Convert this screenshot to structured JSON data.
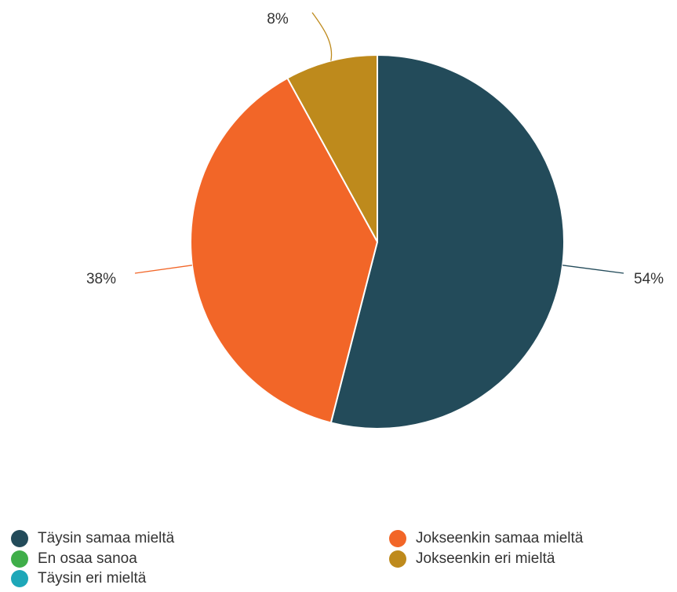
{
  "chart_data": {
    "type": "pie",
    "categories": [
      "Täysin samaa mieltä",
      "Jokseenkin samaa mieltä",
      "En osaa sanoa",
      "Jokseenkin eri mieltä",
      "Täysin eri mieltä"
    ],
    "values": [
      54,
      38,
      0,
      8,
      0
    ],
    "value_labels": [
      "54%",
      "38%",
      "",
      "8%",
      ""
    ],
    "colors": [
      "#234B5A",
      "#F26628",
      "#3FAE49",
      "#BE8A1C",
      "#1EA7B8"
    ],
    "legend_position": "bottom",
    "title": ""
  },
  "legend": [
    {
      "label": "Täysin samaa mieltä",
      "color": "#234B5A"
    },
    {
      "label": "Jokseenkin samaa mieltä",
      "color": "#F26628"
    },
    {
      "label": "En osaa sanoa",
      "color": "#3FAE49"
    },
    {
      "label": "Jokseenkin eri mieltä",
      "color": "#BE8A1C"
    },
    {
      "label": "Täysin eri mieltä",
      "color": "#1EA7B8"
    }
  ]
}
